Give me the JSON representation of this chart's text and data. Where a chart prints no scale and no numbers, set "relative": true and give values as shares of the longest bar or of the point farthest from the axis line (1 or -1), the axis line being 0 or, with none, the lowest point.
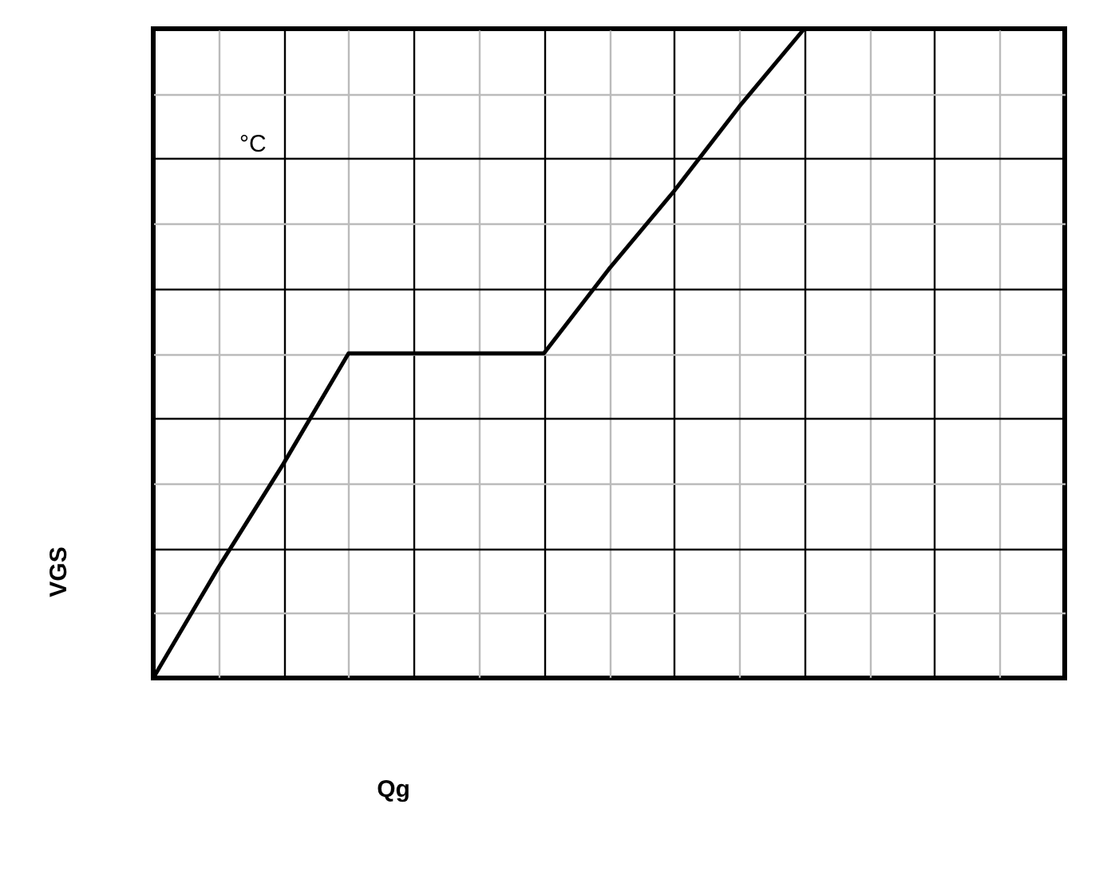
{
  "chart_data": {
    "type": "line",
    "relative": true,
    "xlabel": "Qg",
    "ylabel": "VGS",
    "annotations": [
      "°C"
    ],
    "categories": [
      null,
      null,
      null,
      null,
      null,
      null,
      null,
      null,
      null,
      null,
      null,
      null,
      null,
      null,
      null
    ],
    "series": [
      {
        "color": "#000000",
        "values": [
          0,
          0.17,
          0.33,
          0.5,
          0.5,
          0.5,
          0.5,
          0.63,
          0.75,
          0.88,
          1,
          null,
          null,
          null,
          null
        ]
      }
    ],
    "grid": true,
    "legend": false,
    "marker": "none",
    "line_style": "solid",
    "tick_labels": false
  }
}
